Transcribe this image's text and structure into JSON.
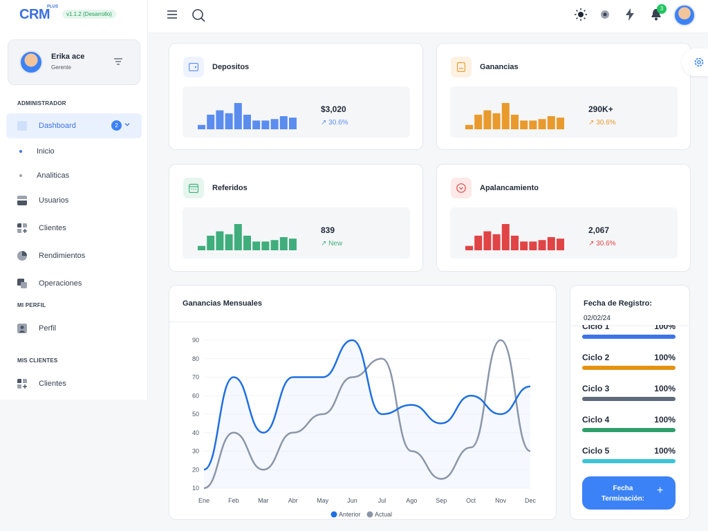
{
  "brand": {
    "logo": "CRM",
    "plus": "PLUS",
    "version": "v1.1.2 (Desarrollo)"
  },
  "user": {
    "name": "Erika ace",
    "role": "Gerente"
  },
  "sidebar": {
    "section_admin": "ADMINISTRADOR",
    "dashboard": {
      "label": "Dashboard",
      "badge": "2"
    },
    "sub_items": [
      "Inicio",
      "Analiticas"
    ],
    "items": [
      "Usuarios",
      "Clientes",
      "Rendimientos",
      "Operaciones"
    ],
    "section_profile": "MI PERFIL",
    "profile_item": "Perfil",
    "section_clients": "MIS CLIENTES",
    "clients_item": "Clientes"
  },
  "topbar": {
    "notifications_count": "3"
  },
  "cards": [
    {
      "title": "Depositos",
      "value": "$3,020",
      "delta": "30.6%",
      "color": "#5b8def",
      "icon_bg": "#eef3fe",
      "bars": [
        3,
        10,
        13,
        11,
        18,
        10,
        6,
        6,
        7,
        9,
        8
      ]
    },
    {
      "title": "Ganancias",
      "value": "290K+",
      "delta": "30.6%",
      "color": "#e99a2c",
      "icon_bg": "#fdf1e2",
      "bars": [
        3,
        10,
        13,
        11,
        18,
        10,
        6,
        6,
        7,
        9,
        8
      ]
    },
    {
      "title": "Referidos",
      "value": "839",
      "delta": "New",
      "color": "#3fae7c",
      "icon_bg": "#e6f5ee",
      "bars": [
        3,
        10,
        13,
        11,
        18,
        10,
        6,
        6,
        7,
        9,
        8
      ]
    },
    {
      "title": "Apalancamiento",
      "value": "2,067",
      "delta": "30.6%",
      "color": "#e04444",
      "icon_bg": "#fde9e7",
      "bars": [
        3,
        10,
        13,
        11,
        18,
        10,
        6,
        6,
        7,
        9,
        8
      ]
    }
  ],
  "monthly": {
    "title": "Ganancias Mensuales",
    "chart_data": {
      "type": "line",
      "x": [
        "Ene",
        "Feb",
        "Mar",
        "Abr",
        "May",
        "Jun",
        "Jul",
        "Ago",
        "Sep",
        "Oct",
        "Nov",
        "Dec"
      ],
      "series": [
        {
          "name": "Anterior",
          "color": "#1f6fe0",
          "values": [
            20,
            70,
            40,
            70,
            70,
            90,
            50,
            55,
            45,
            60,
            50,
            65
          ]
        },
        {
          "name": "Actual",
          "color": "#8a96a8",
          "values": [
            10,
            40,
            20,
            40,
            50,
            70,
            80,
            30,
            15,
            32,
            90,
            30
          ]
        }
      ],
      "yticks": [
        10,
        20,
        30,
        40,
        50,
        60,
        70,
        80,
        90
      ],
      "ylim": [
        10,
        90
      ],
      "title": "Ganancias Mensuales",
      "legend": "bottom"
    }
  },
  "registration": {
    "title": "Fecha de Registro:",
    "date": "02/02/24",
    "cycles": [
      {
        "name": "Ciclo 1",
        "pct": "100%",
        "color": "#3b74e8"
      },
      {
        "name": "Ciclo 2",
        "pct": "100%",
        "color": "#e39212"
      },
      {
        "name": "Ciclo 3",
        "pct": "100%",
        "color": "#5f6b7a"
      },
      {
        "name": "Ciclo 4",
        "pct": "100%",
        "color": "#2e9f6a"
      },
      {
        "name": "Ciclo 5",
        "pct": "100%",
        "color": "#3cc4d8"
      }
    ],
    "button": "Fecha Terminación:"
  }
}
